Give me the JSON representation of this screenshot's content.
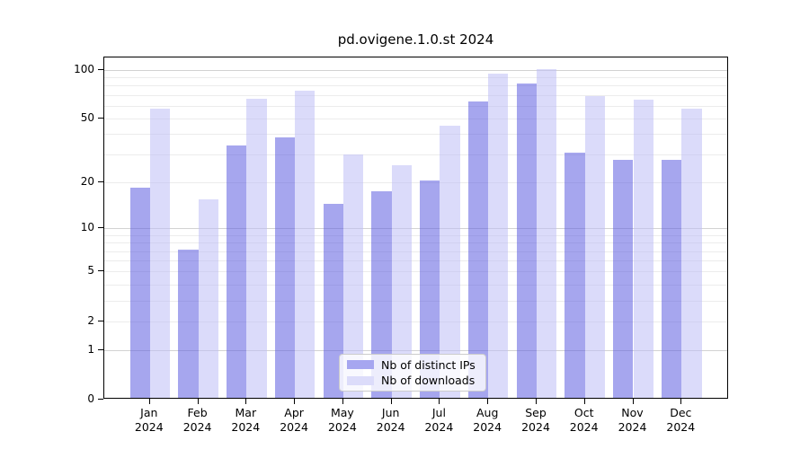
{
  "title": "pd.ovigene.1.0.st 2024",
  "chart_data": {
    "type": "bar",
    "title": "pd.ovigene.1.0.st 2024",
    "xlabel": "",
    "ylabel": "",
    "scale": "log1p",
    "ylim": [
      0,
      119
    ],
    "grid": true,
    "legend_position": "lower center",
    "categories": [
      "Jan 2024",
      "Feb 2024",
      "Mar 2024",
      "Apr 2024",
      "May 2024",
      "Jun 2024",
      "Jul 2024",
      "Aug 2024",
      "Sep 2024",
      "Oct 2024",
      "Nov 2024",
      "Dec 2024"
    ],
    "series": [
      {
        "name": "Nb of distinct IPs",
        "values": [
          18,
          7,
          33,
          37,
          14,
          17,
          20,
          62,
          80,
          30,
          27,
          27
        ],
        "bar_color": "rgba(92,92,224,0.55)",
        "legend_color": "#a6a6f0"
      },
      {
        "name": "Nb of downloads",
        "values": [
          56,
          15,
          65,
          72,
          29,
          25,
          44,
          92,
          98,
          67,
          64,
          56
        ],
        "bar_color": "rgba(190,190,246,0.55)",
        "legend_color": "#dcdcfa"
      }
    ],
    "yticks": [
      100,
      50,
      20,
      10,
      5,
      2,
      1,
      0
    ],
    "grid_minor_values": [
      2,
      3,
      4,
      5,
      6,
      7,
      8,
      9,
      20,
      30,
      40,
      50,
      60,
      70,
      80,
      90
    ],
    "grid_major_values": [
      1,
      10,
      100
    ],
    "colors": {
      "axis": "#000000",
      "grid_minor": "#ececec",
      "grid_major": "#d2d2d2",
      "background": "#ffffff"
    }
  }
}
